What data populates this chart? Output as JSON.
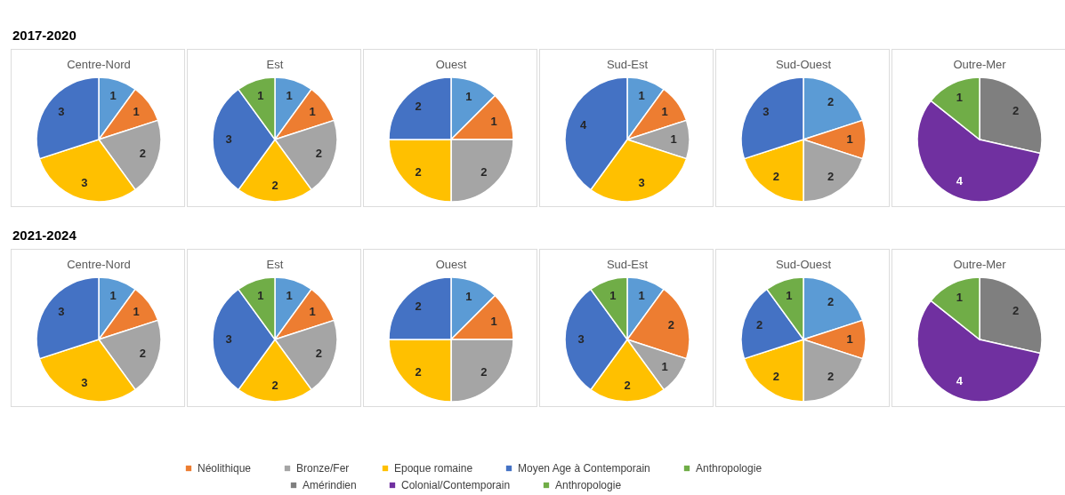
{
  "chart_data": [
    {
      "type": "pie",
      "title": "Centre-Nord",
      "annotations": [
        "2017-2020"
      ],
      "categories": [
        null,
        null,
        null,
        null,
        null
      ],
      "values": [
        1,
        1,
        2,
        3,
        3
      ],
      "colors": [
        "#5b9bd5",
        "#ed7d31",
        "#a5a5a5",
        "#ffc000",
        "#4472c4"
      ],
      "data_labels": true
    },
    {
      "type": "pie",
      "title": "Est",
      "categories": [
        null,
        null,
        null,
        null,
        null,
        null
      ],
      "values": [
        1,
        1,
        2,
        2,
        3,
        1
      ],
      "colors": [
        "#5b9bd5",
        "#ed7d31",
        "#a5a5a5",
        "#ffc000",
        "#4472c4",
        "#70ad47"
      ],
      "data_labels": true
    },
    {
      "type": "pie",
      "title": "Ouest",
      "categories": [
        null,
        null,
        null,
        null,
        null
      ],
      "values": [
        1,
        1,
        2,
        2,
        2
      ],
      "colors": [
        "#5b9bd5",
        "#ed7d31",
        "#a5a5a5",
        "#ffc000",
        "#4472c4"
      ],
      "data_labels": true
    },
    {
      "type": "pie",
      "title": "Sud-Est",
      "categories": [
        null,
        null,
        null,
        null,
        null
      ],
      "values": [
        1,
        1,
        1,
        3,
        4
      ],
      "colors": [
        "#5b9bd5",
        "#ed7d31",
        "#a5a5a5",
        "#ffc000",
        "#4472c4"
      ],
      "data_labels": true
    },
    {
      "type": "pie",
      "title": "Sud-Ouest",
      "categories": [
        null,
        null,
        null,
        null,
        null
      ],
      "values": [
        2,
        1,
        2,
        2,
        3
      ],
      "colors": [
        "#5b9bd5",
        "#ed7d31",
        "#a5a5a5",
        "#ffc000",
        "#4472c4"
      ],
      "data_labels": true
    },
    {
      "type": "pie",
      "title": "Outre-Mer",
      "categories": [
        null,
        null,
        null
      ],
      "values": [
        2,
        4,
        1
      ],
      "colors": [
        "#7f7f7f",
        "#7030a0",
        "#70ad47"
      ],
      "data_labels": true
    },
    {
      "type": "pie",
      "title": "Centre-Nord",
      "annotations": [
        "2021-2024"
      ],
      "categories": [
        null,
        null,
        null,
        null,
        null
      ],
      "values": [
        1,
        1,
        2,
        3,
        3
      ],
      "colors": [
        "#5b9bd5",
        "#ed7d31",
        "#a5a5a5",
        "#ffc000",
        "#4472c4"
      ],
      "data_labels": true
    },
    {
      "type": "pie",
      "title": "Est",
      "categories": [
        null,
        "Néolithique",
        "Bronze/Fer",
        "Epoque romaine",
        "Moyen Age à Contemporain",
        "Anthropologie"
      ],
      "values": [
        1,
        1,
        2,
        2,
        3,
        1
      ],
      "colors": [
        "#5b9bd5",
        "#ed7d31",
        "#a5a5a5",
        "#ffc000",
        "#4472c4",
        "#70ad47"
      ],
      "data_labels": true,
      "legend": "bottom"
    },
    {
      "type": "pie",
      "title": "Ouest",
      "categories": [
        null,
        null,
        null,
        null,
        null
      ],
      "values": [
        1,
        1,
        2,
        2,
        2
      ],
      "colors": [
        "#5b9bd5",
        "#ed7d31",
        "#a5a5a5",
        "#ffc000",
        "#4472c4"
      ],
      "data_labels": true
    },
    {
      "type": "pie",
      "title": "Sud-Est",
      "categories": [
        null,
        null,
        null,
        null,
        null,
        null
      ],
      "values": [
        1,
        2,
        1,
        2,
        3,
        1
      ],
      "colors": [
        "#5b9bd5",
        "#ed7d31",
        "#a5a5a5",
        "#ffc000",
        "#4472c4",
        "#70ad47"
      ],
      "data_labels": true
    },
    {
      "type": "pie",
      "title": "Sud-Ouest",
      "categories": [
        null,
        null,
        null,
        null,
        null,
        null
      ],
      "values": [
        2,
        1,
        2,
        2,
        2,
        1
      ],
      "colors": [
        "#5b9bd5",
        "#ed7d31",
        "#a5a5a5",
        "#ffc000",
        "#4472c4",
        "#70ad47"
      ],
      "data_labels": true
    },
    {
      "type": "pie",
      "title": "Outre-Mer",
      "categories": [
        "Amérindien",
        "Colonial/Contemporain",
        "Anthropologie"
      ],
      "values": [
        2,
        4,
        1
      ],
      "colors": [
        "#7f7f7f",
        "#7030a0",
        "#70ad47"
      ],
      "data_labels": true,
      "legend": "bottom"
    }
  ]
}
